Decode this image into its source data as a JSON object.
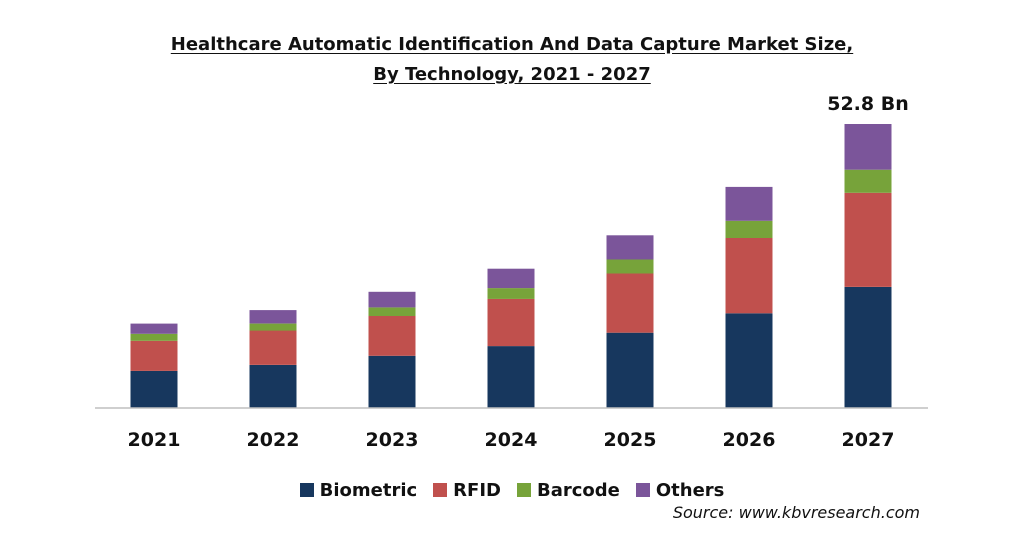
{
  "chart_data": {
    "type": "bar",
    "stacked": true,
    "title_lines": [
      "Healthcare Automatic Identification And Data Capture Market Size,",
      "By Technology, 2021 - 2027"
    ],
    "categories": [
      "2021",
      "2022",
      "2023",
      "2024",
      "2025",
      "2026",
      "2027"
    ],
    "series": [
      {
        "name": "Biometric",
        "color": "#17375e",
        "values": [
          6.9,
          8.0,
          9.7,
          11.5,
          14.0,
          17.6,
          22.5
        ]
      },
      {
        "name": "RFID",
        "color": "#c0504d",
        "values": [
          5.6,
          6.4,
          7.4,
          8.8,
          11.0,
          14.0,
          17.5
        ]
      },
      {
        "name": "Barcode",
        "color": "#77a33a",
        "values": [
          1.3,
          1.3,
          1.6,
          2.0,
          2.6,
          3.2,
          4.3
        ]
      },
      {
        "name": "Others",
        "color": "#7b559a",
        "values": [
          1.9,
          2.5,
          2.9,
          3.6,
          4.5,
          6.3,
          8.5
        ]
      }
    ],
    "data_labels": [
      {
        "category": "2027",
        "text": "52.8 Bn"
      }
    ],
    "ylim": [
      0,
      52.8
    ],
    "grid": false,
    "legend_position": "bottom"
  },
  "source": "Source: www.kbvresearch.com"
}
